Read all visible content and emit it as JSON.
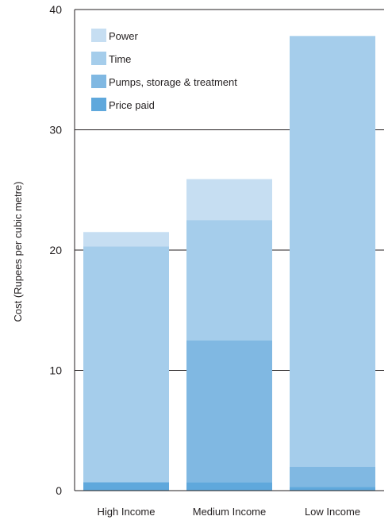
{
  "chart_data": {
    "type": "bar",
    "stacked": true,
    "ylabel": "Cost (Rupees per cubic metre)",
    "xlabel": "",
    "ylim": [
      0,
      40
    ],
    "yticks": [
      0,
      10,
      20,
      30,
      40
    ],
    "grid": true,
    "legend_position": "top-left",
    "categories": [
      "High Income",
      "Medium Income",
      "Low Income"
    ],
    "series": [
      {
        "name": "Price paid",
        "color": "#5fa8dc",
        "values": [
          0.7,
          0.7,
          0.3
        ]
      },
      {
        "name": "Pumps, storage & treatment",
        "color": "#80b8e2",
        "values": [
          0,
          11.8,
          1.7
        ]
      },
      {
        "name": "Time",
        "color": "#a5cdeb",
        "values": [
          19.6,
          10.0,
          35.8
        ]
      },
      {
        "name": "Power",
        "color": "#c6def2",
        "values": [
          1.2,
          3.4,
          0
        ]
      }
    ]
  }
}
